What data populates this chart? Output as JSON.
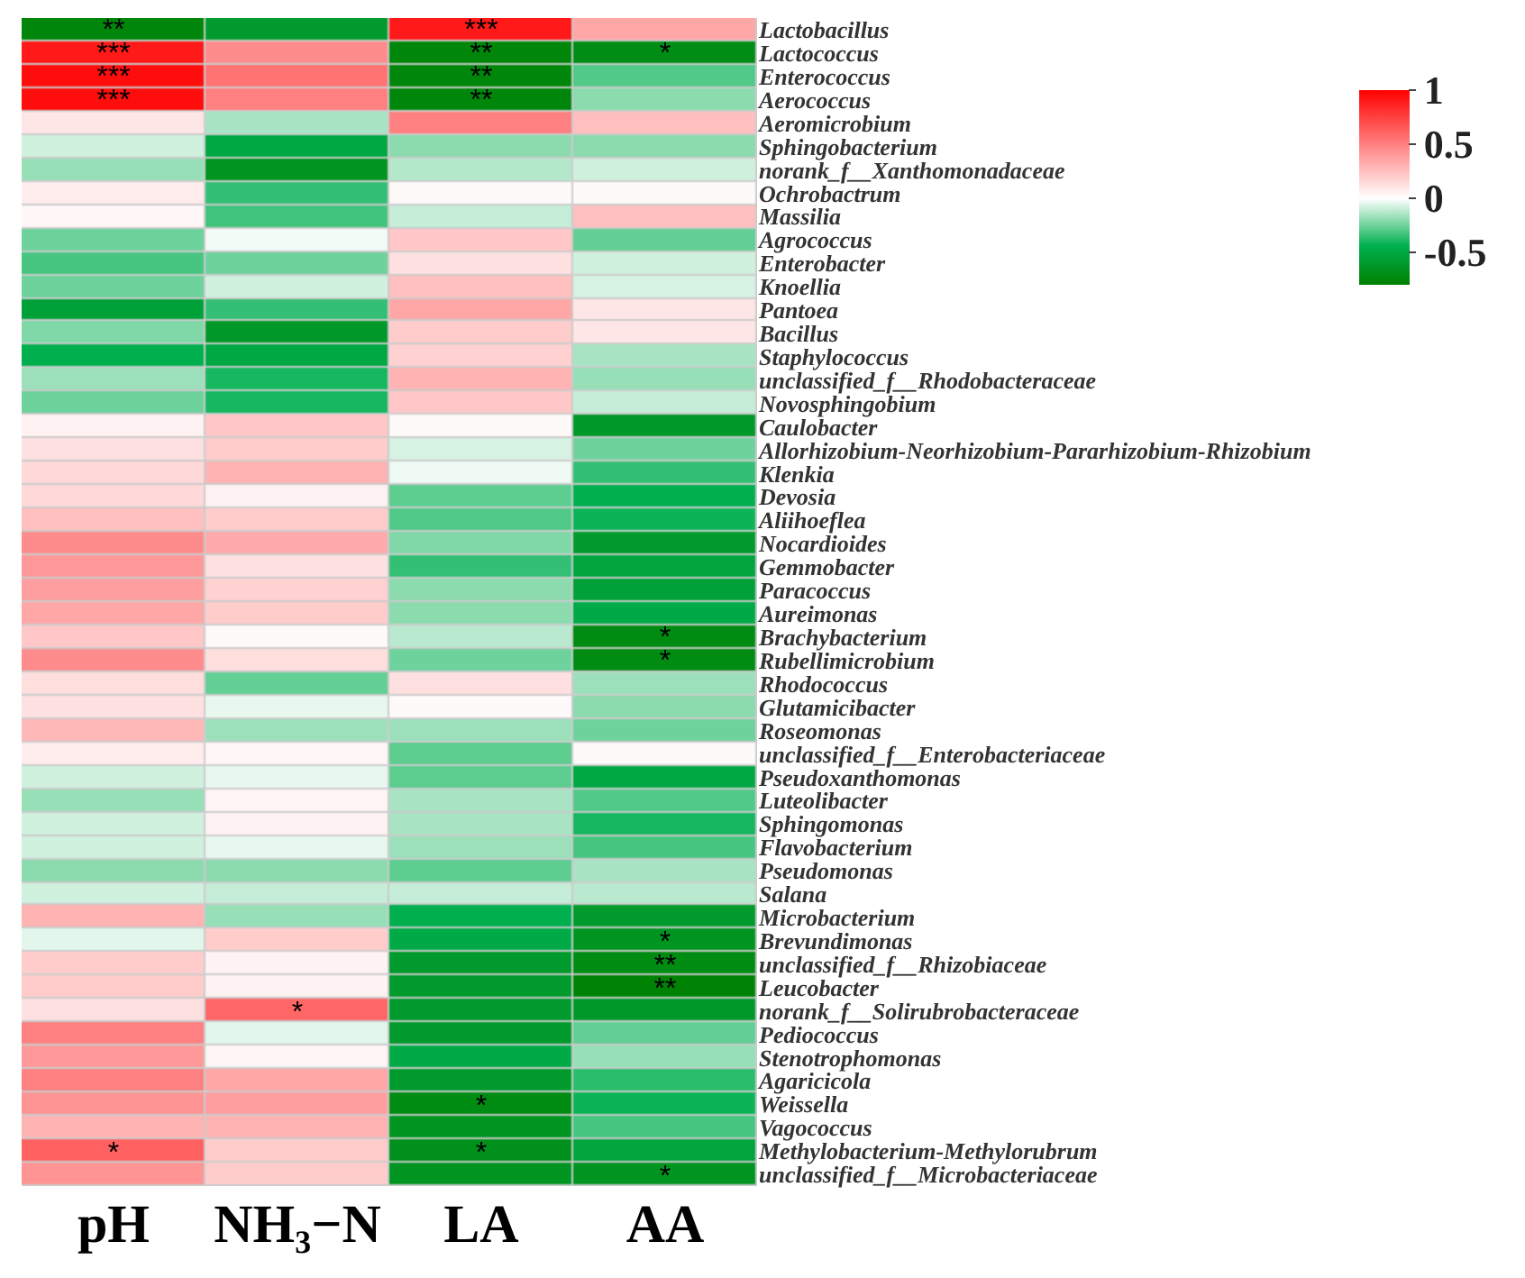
{
  "chart_data": {
    "type": "heatmap",
    "categories": [
      "pH",
      "NH₃−N",
      "LA",
      "AA"
    ],
    "y_categories": [
      "Lactobacillus",
      "Lactococcus",
      "Enterococcus",
      "Aerococcus",
      "Aeromicrobium",
      "Sphingobacterium",
      "norank_f__Xanthomonadaceae",
      "Ochrobactrum",
      "Massilia",
      "Agrococcus",
      "Enterobacter",
      "Knoellia",
      "Pantoea",
      "Bacillus",
      "Staphylococcus",
      "unclassified_f__Rhodobacteraceae",
      "Novosphingobium",
      "Caulobacter",
      "Allorhizobium-Neorhizobium-Pararhizobium-Rhizobium",
      "Klenkia",
      "Devosia",
      "Aliihoeflea",
      "Nocardioides",
      "Gemmobacter",
      "Paracoccus",
      "Aureimonas",
      "Brachybacterium",
      "Rubellimicrobium",
      "Rhodococcus",
      "Glutamicibacter",
      "Roseomonas",
      "unclassified_f__Enterobacteriaceae",
      "Pseudoxanthomonas",
      "Luteolibacter",
      "Sphingomonas",
      "Flavobacterium",
      "Pseudomonas",
      "Salana",
      "Microbacterium",
      "Brevundimonas",
      "unclassified_f__Rhizobiaceae",
      "Leucobacter",
      "norank_f__Solirubrobacteraceae",
      "Pediococcus",
      "Stenotrophomonas",
      "Agaricicola",
      "Weissella",
      "Vagococcus",
      "Methylobacterium-Methylorubrum",
      "unclassified_f__Microbacteriaceae"
    ],
    "cells": [
      [
        -0.75,
        -0.6,
        0.9,
        0.35
      ],
      [
        0.9,
        0.45,
        -0.75,
        -0.7
      ],
      [
        0.95,
        0.55,
        -0.75,
        -0.3
      ],
      [
        0.95,
        0.5,
        -0.75,
        -0.2
      ],
      [
        0.1,
        -0.15,
        0.5,
        0.25
      ],
      [
        -0.08,
        -0.5,
        -0.2,
        -0.2
      ],
      [
        -0.18,
        -0.65,
        -0.13,
        -0.08
      ],
      [
        0.07,
        -0.35,
        0.02,
        0.02
      ],
      [
        0.03,
        -0.33,
        -0.1,
        0.25
      ],
      [
        -0.25,
        -0.02,
        0.22,
        -0.27
      ],
      [
        -0.32,
        -0.25,
        0.12,
        -0.08
      ],
      [
        -0.25,
        -0.08,
        0.25,
        -0.07
      ],
      [
        -0.55,
        -0.35,
        0.35,
        0.1
      ],
      [
        -0.22,
        -0.62,
        0.2,
        0.1
      ],
      [
        -0.45,
        -0.5,
        0.18,
        -0.15
      ],
      [
        -0.17,
        -0.4,
        0.3,
        -0.18
      ],
      [
        -0.25,
        -0.4,
        0.22,
        -0.1
      ],
      [
        0.05,
        0.22,
        0.02,
        -0.62
      ],
      [
        0.12,
        0.2,
        -0.07,
        -0.25
      ],
      [
        0.15,
        0.3,
        -0.03,
        -0.35
      ],
      [
        0.15,
        0.05,
        -0.28,
        -0.45
      ],
      [
        0.25,
        0.2,
        -0.3,
        -0.42
      ],
      [
        0.45,
        0.33,
        -0.22,
        -0.6
      ],
      [
        0.4,
        0.12,
        -0.35,
        -0.52
      ],
      [
        0.38,
        0.18,
        -0.2,
        -0.55
      ],
      [
        0.35,
        0.2,
        -0.2,
        -0.48
      ],
      [
        0.22,
        0.02,
        -0.12,
        -0.72
      ],
      [
        0.45,
        0.13,
        -0.25,
        -0.72
      ],
      [
        0.13,
        -0.27,
        0.12,
        -0.17
      ],
      [
        0.12,
        -0.04,
        0.02,
        -0.2
      ],
      [
        0.28,
        -0.17,
        -0.17,
        -0.25
      ],
      [
        0.07,
        0.03,
        -0.28,
        0.02
      ],
      [
        -0.08,
        -0.04,
        -0.28,
        -0.5
      ],
      [
        -0.18,
        0.04,
        -0.15,
        -0.3
      ],
      [
        -0.08,
        0.05,
        -0.15,
        -0.4
      ],
      [
        -0.08,
        -0.04,
        -0.17,
        -0.32
      ],
      [
        -0.2,
        -0.2,
        -0.28,
        -0.15
      ],
      [
        -0.08,
        -0.1,
        -0.1,
        -0.12
      ],
      [
        0.3,
        -0.18,
        -0.45,
        -0.6
      ],
      [
        -0.05,
        0.2,
        -0.48,
        -0.65
      ],
      [
        0.2,
        0.05,
        -0.6,
        -0.72
      ],
      [
        0.2,
        0.05,
        -0.6,
        -0.78
      ],
      [
        0.12,
        0.6,
        -0.6,
        -0.62
      ],
      [
        0.5,
        -0.05,
        -0.6,
        -0.27
      ],
      [
        0.4,
        0.04,
        -0.48,
        -0.18
      ],
      [
        0.5,
        0.35,
        -0.6,
        -0.37
      ],
      [
        0.42,
        0.38,
        -0.72,
        -0.42
      ],
      [
        0.3,
        0.3,
        -0.65,
        -0.32
      ],
      [
        0.62,
        0.2,
        -0.68,
        -0.52
      ],
      [
        0.42,
        0.2,
        -0.65,
        -0.65
      ]
    ],
    "cell_labels": [
      [
        "**",
        null,
        "***",
        null
      ],
      [
        "***",
        null,
        "**",
        "*"
      ],
      [
        "***",
        null,
        "**",
        null
      ],
      [
        "***",
        null,
        "**",
        null
      ],
      [
        null,
        null,
        null,
        null
      ],
      [
        null,
        null,
        null,
        null
      ],
      [
        null,
        null,
        null,
        null
      ],
      [
        null,
        null,
        null,
        null
      ],
      [
        null,
        null,
        null,
        null
      ],
      [
        null,
        null,
        null,
        null
      ],
      [
        null,
        null,
        null,
        null
      ],
      [
        null,
        null,
        null,
        null
      ],
      [
        null,
        null,
        null,
        null
      ],
      [
        null,
        null,
        null,
        null
      ],
      [
        null,
        null,
        null,
        null
      ],
      [
        null,
        null,
        null,
        null
      ],
      [
        null,
        null,
        null,
        null
      ],
      [
        null,
        null,
        null,
        null
      ],
      [
        null,
        null,
        null,
        null
      ],
      [
        null,
        null,
        null,
        null
      ],
      [
        null,
        null,
        null,
        null
      ],
      [
        null,
        null,
        null,
        null
      ],
      [
        null,
        null,
        null,
        null
      ],
      [
        null,
        null,
        null,
        null
      ],
      [
        null,
        null,
        null,
        null
      ],
      [
        null,
        null,
        null,
        null
      ],
      [
        null,
        null,
        null,
        "*"
      ],
      [
        null,
        null,
        null,
        "*"
      ],
      [
        null,
        null,
        null,
        null
      ],
      [
        null,
        null,
        null,
        null
      ],
      [
        null,
        null,
        null,
        null
      ],
      [
        null,
        null,
        null,
        null
      ],
      [
        null,
        null,
        null,
        null
      ],
      [
        null,
        null,
        null,
        null
      ],
      [
        null,
        null,
        null,
        null
      ],
      [
        null,
        null,
        null,
        null
      ],
      [
        null,
        null,
        null,
        null
      ],
      [
        null,
        null,
        null,
        null
      ],
      [
        null,
        null,
        null,
        null
      ],
      [
        null,
        null,
        null,
        "*"
      ],
      [
        null,
        null,
        null,
        "**"
      ],
      [
        null,
        null,
        null,
        "**"
      ],
      [
        null,
        "*",
        null,
        null
      ],
      [
        null,
        null,
        null,
        null
      ],
      [
        null,
        null,
        null,
        null
      ],
      [
        null,
        null,
        null,
        null
      ],
      [
        null,
        null,
        "*",
        null
      ],
      [
        null,
        null,
        null,
        null
      ],
      [
        "*",
        null,
        "*",
        null
      ],
      [
        null,
        null,
        null,
        "*"
      ]
    ],
    "clim": [
      -0.8,
      1
    ],
    "cticks": [
      -0.5,
      0,
      0.5,
      1
    ]
  }
}
